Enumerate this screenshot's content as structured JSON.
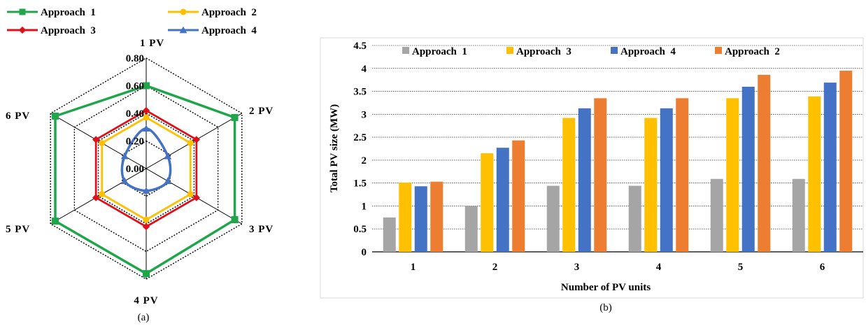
{
  "figure": {
    "panel_a_caption": "(a)",
    "panel_b_caption": "(b)"
  },
  "chart_data": [
    {
      "type": "radar",
      "axes": [
        "1 PV",
        "2 PV",
        "3 PV",
        "4 PV",
        "5 PV",
        "6 PV"
      ],
      "radial_ticks": [
        "0.00",
        "0.20",
        "0.40",
        "0.60",
        "0.80"
      ],
      "rlim": [
        0,
        0.8
      ],
      "grid": true,
      "legend_position": "top",
      "series": [
        {
          "name": "Approach  1",
          "color": "#1fa64a",
          "marker": "square",
          "values": [
            0.6,
            0.74,
            0.74,
            0.76,
            0.76,
            0.76
          ]
        },
        {
          "name": "Approach  2",
          "color": "#ffc000",
          "marker": "circle",
          "values": [
            0.37,
            0.37,
            0.37,
            0.37,
            0.37,
            0.37
          ]
        },
        {
          "name": "Approach  3",
          "color": "#e0101a",
          "marker": "diamond",
          "values": [
            0.42,
            0.42,
            0.42,
            0.42,
            0.42,
            0.42
          ]
        },
        {
          "name": "Approach  4",
          "color": "#4472c4",
          "marker": "triangle",
          "values": [
            0.29,
            0.18,
            0.18,
            0.16,
            0.18,
            0.18
          ]
        }
      ]
    },
    {
      "type": "bar",
      "categories": [
        "1",
        "2",
        "3",
        "4",
        "5",
        "6"
      ],
      "xlabel": "Number of PV units",
      "ylabel": "Total PV size (MW)",
      "ylim": [
        0,
        4.5
      ],
      "yticks": [
        "0",
        "0.5",
        "1",
        "1.5",
        "2",
        "2.5",
        "3",
        "3.5",
        "4",
        "4.5"
      ],
      "grid": true,
      "legend_position": "top",
      "series": [
        {
          "name": "Approach  1",
          "color": "#a5a5a5",
          "values": [
            0.75,
            1.0,
            1.44,
            1.44,
            1.59,
            1.59
          ]
        },
        {
          "name": "Approach  3",
          "color": "#ffc000",
          "values": [
            1.51,
            2.15,
            2.92,
            2.92,
            3.35,
            3.39
          ]
        },
        {
          "name": "Approach  4",
          "color": "#4472c4",
          "values": [
            1.43,
            2.27,
            3.13,
            3.13,
            3.6,
            3.69
          ]
        },
        {
          "name": "Approach  2",
          "color": "#ed7d31",
          "values": [
            1.53,
            2.43,
            3.35,
            3.35,
            3.86,
            3.95
          ]
        }
      ]
    }
  ]
}
